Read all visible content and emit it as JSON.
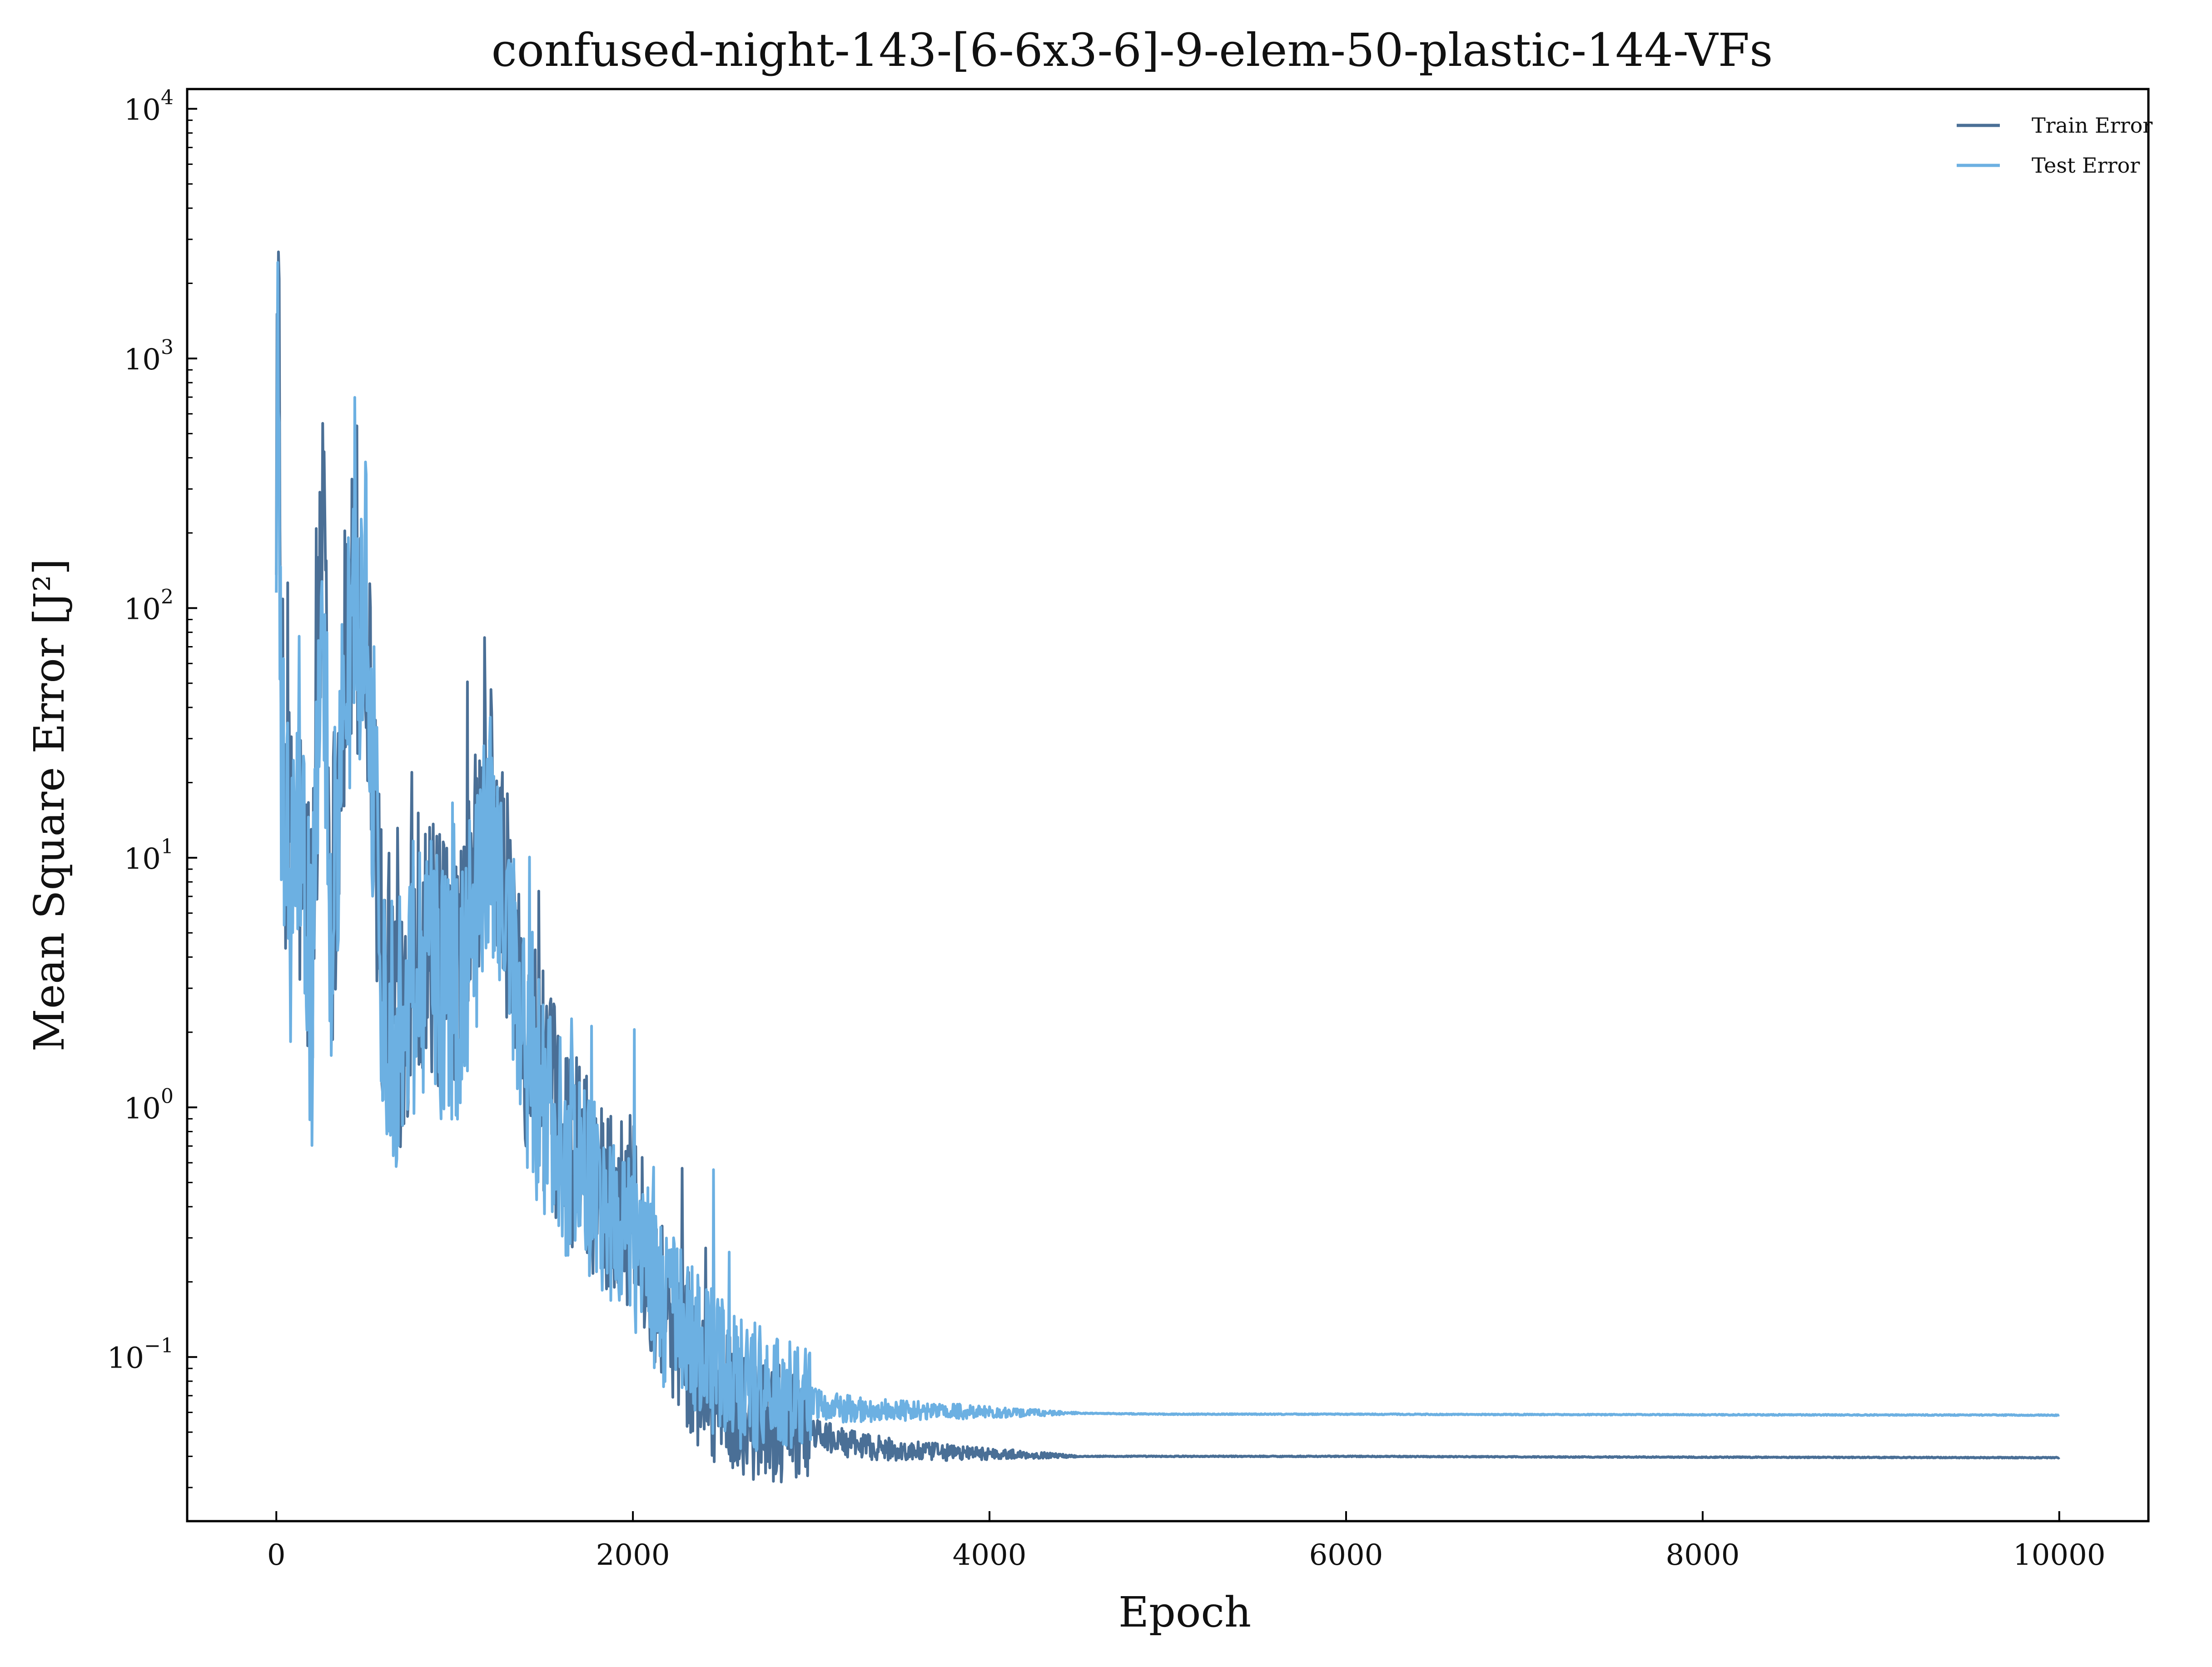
{
  "chart_data": {
    "type": "line",
    "title": "confused-night-143-[6-6x3-6]-9-elem-50-plastic-144-VFs",
    "xlabel": "Epoch",
    "ylabel": "Mean Square Error [J²]",
    "xlim": [
      -500,
      10500
    ],
    "ylim": [
      0.022,
      12000
    ],
    "yscale": "log",
    "xticks": [
      0,
      2000,
      4000,
      6000,
      8000,
      10000
    ],
    "xtick_labels": [
      "0",
      "2000",
      "4000",
      "6000",
      "8000",
      "10000"
    ],
    "yticks": [
      0.1,
      1,
      10,
      100,
      1000,
      10000
    ],
    "ytick_labels": [
      {
        "base": "10",
        "exp": "−1"
      },
      {
        "base": "10",
        "exp": "0"
      },
      {
        "base": "10",
        "exp": "1"
      },
      {
        "base": "10",
        "exp": "2"
      },
      {
        "base": "10",
        "exp": "3"
      },
      {
        "base": "10",
        "exp": "4"
      }
    ],
    "grid": false,
    "legend_position": "top-right",
    "series": [
      {
        "name": "Train Error",
        "color": "#4a6f96",
        "x": [
          0,
          10,
          20,
          40,
          80,
          120,
          200,
          270,
          300,
          400,
          500,
          600,
          700,
          800,
          1000,
          1200,
          1400,
          1600,
          1800,
          2000,
          2200,
          2400,
          2600,
          2800,
          3000,
          3200,
          3500,
          4000,
          4500,
          5000,
          6000,
          7000,
          8000,
          9000,
          10000
        ],
        "y": [
          300,
          6000,
          50,
          20,
          8,
          12,
          4,
          500,
          5,
          80,
          100,
          3,
          2.5,
          5,
          3,
          18,
          2,
          0.8,
          0.5,
          0.35,
          0.15,
          0.08,
          0.06,
          0.055,
          0.05,
          0.045,
          0.042,
          0.041,
          0.04,
          0.04,
          0.04,
          0.0398,
          0.0397,
          0.0396,
          0.0395
        ]
      },
      {
        "name": "Test Error",
        "color": "#6cb0e2",
        "x": [
          0,
          10,
          20,
          40,
          80,
          120,
          200,
          270,
          300,
          400,
          500,
          600,
          700,
          800,
          1000,
          1200,
          1400,
          1600,
          1800,
          2000,
          2200,
          2400,
          2600,
          2800,
          3000,
          3200,
          3500,
          4000,
          4500,
          5000,
          6000,
          7000,
          8000,
          9000,
          10000
        ],
        "y": [
          200,
          1700,
          40,
          15,
          6,
          10,
          3,
          100,
          4,
          60,
          120,
          2.5,
          2,
          4,
          2.5,
          12,
          1.5,
          0.7,
          0.45,
          0.3,
          0.15,
          0.1,
          0.08,
          0.07,
          0.065,
          0.062,
          0.061,
          0.06,
          0.0595,
          0.059,
          0.059,
          0.0588,
          0.0587,
          0.0586,
          0.0585
        ]
      }
    ]
  }
}
